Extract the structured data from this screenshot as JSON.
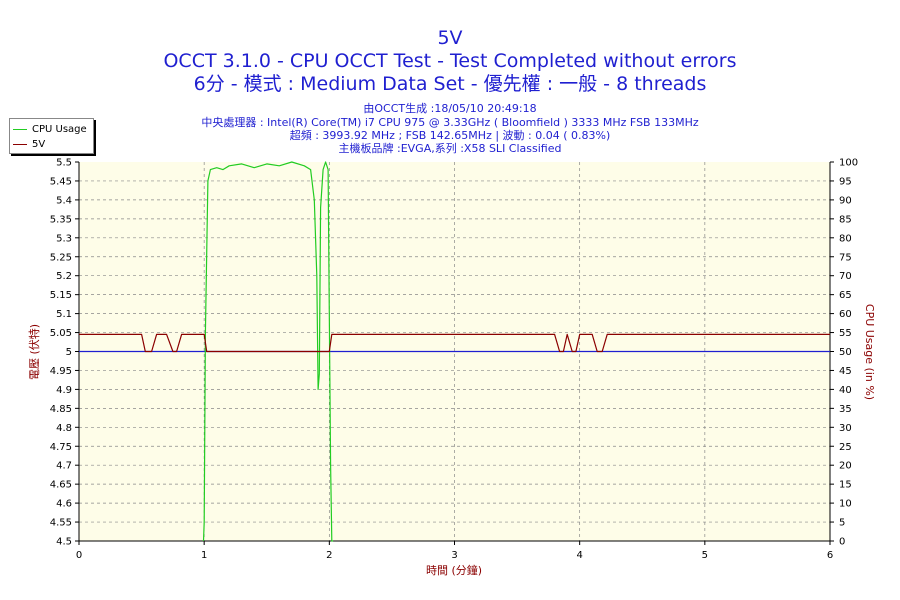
{
  "chart_data": {
    "type": "line",
    "title": "5V",
    "subtitle_1": "OCCT 3.1.0 - CPU OCCT Test - Test Completed without errors",
    "subtitle_2": "6分 - 模式 : Medium Data Set - 優先權 : 一般 - 8 threads",
    "info_lines": [
      "由OCCT生成 :18/05/10 20:49:18",
      "中央處理器 : Intel(R) Core(TM) i7 CPU 975 @ 3.33GHz ( Bloomfield ) 3333 MHz FSB 133MHz",
      "超頻 : 3993.92 MHz ; FSB 142.65MHz | 波動 : 0.04 ( 0.83%)",
      "主機板品牌 :EVGA,系列 :X58 SLI Classified"
    ],
    "xlabel": "時間 (分鐘)",
    "ylabel_left": "電壓 (伏特)",
    "ylabel_right": "CPU Usage (in %)",
    "xlim": [
      0,
      6
    ],
    "ylim_left": [
      4.5,
      5.5
    ],
    "ylim_right": [
      0,
      100
    ],
    "x_ticks": [
      "0",
      "1",
      "2",
      "3",
      "4",
      "5",
      "6"
    ],
    "y_left_ticks": [
      "4.5",
      "4.55",
      "4.6",
      "4.65",
      "4.7",
      "4.75",
      "4.8",
      "4.85",
      "4.9",
      "4.95",
      "5",
      "5.05",
      "5.1",
      "5.15",
      "5.2",
      "5.25",
      "5.3",
      "5.35",
      "5.4",
      "5.45",
      "5.5"
    ],
    "y_right_ticks": [
      "0",
      "5",
      "10",
      "15",
      "20",
      "25",
      "30",
      "35",
      "40",
      "45",
      "50",
      "55",
      "60",
      "65",
      "70",
      "75",
      "80",
      "85",
      "90",
      "95",
      "100"
    ],
    "reference_line": 5.0,
    "grid": true,
    "legend_position": "top-left",
    "series": [
      {
        "name": "CPU Usage",
        "axis": "right",
        "color": "#22cc22",
        "x": [
          0.995,
          1.0,
          1.01,
          1.03,
          1.05,
          1.1,
          1.15,
          1.2,
          1.3,
          1.4,
          1.5,
          1.6,
          1.7,
          1.8,
          1.85,
          1.88,
          1.9,
          1.91,
          1.92,
          1.93,
          1.95,
          1.97,
          1.99,
          2.0,
          2.01,
          2.02,
          2.03
        ],
        "values": [
          0,
          5,
          55,
          95,
          98,
          98.5,
          98,
          99,
          99.5,
          98.5,
          99.5,
          99,
          100,
          99,
          98,
          90,
          70,
          40,
          44,
          88,
          98,
          100,
          98,
          60,
          20,
          0,
          0
        ]
      },
      {
        "name": "5V",
        "axis": "left",
        "color": "#8b0000",
        "x": [
          0,
          0.5,
          0.53,
          0.58,
          0.62,
          0.7,
          0.75,
          0.78,
          0.82,
          1.0,
          1.02,
          1.03,
          1.06,
          1.5,
          1.9,
          2.0,
          2.02,
          2.06,
          3.0,
          3.8,
          3.84,
          3.87,
          3.9,
          3.94,
          3.97,
          4.0,
          4.03,
          4.1,
          4.14,
          4.18,
          4.22,
          6.0
        ],
        "values": [
          5.045,
          5.045,
          5.0,
          5.0,
          5.045,
          5.045,
          5.0,
          5.0,
          5.045,
          5.045,
          5.0,
          5.0,
          5.0,
          5.0,
          5.0,
          5.0,
          5.045,
          5.045,
          5.045,
          5.045,
          5.0,
          5.0,
          5.045,
          5.0,
          5.0,
          5.045,
          5.045,
          5.045,
          5.0,
          5.0,
          5.045,
          5.045
        ]
      }
    ],
    "colors": {
      "title": "#1f1fd0",
      "axis_label": "#8b0000",
      "plot_bg": "#fefde8",
      "grid": "#888888",
      "reference": "#1f1fd0"
    }
  }
}
